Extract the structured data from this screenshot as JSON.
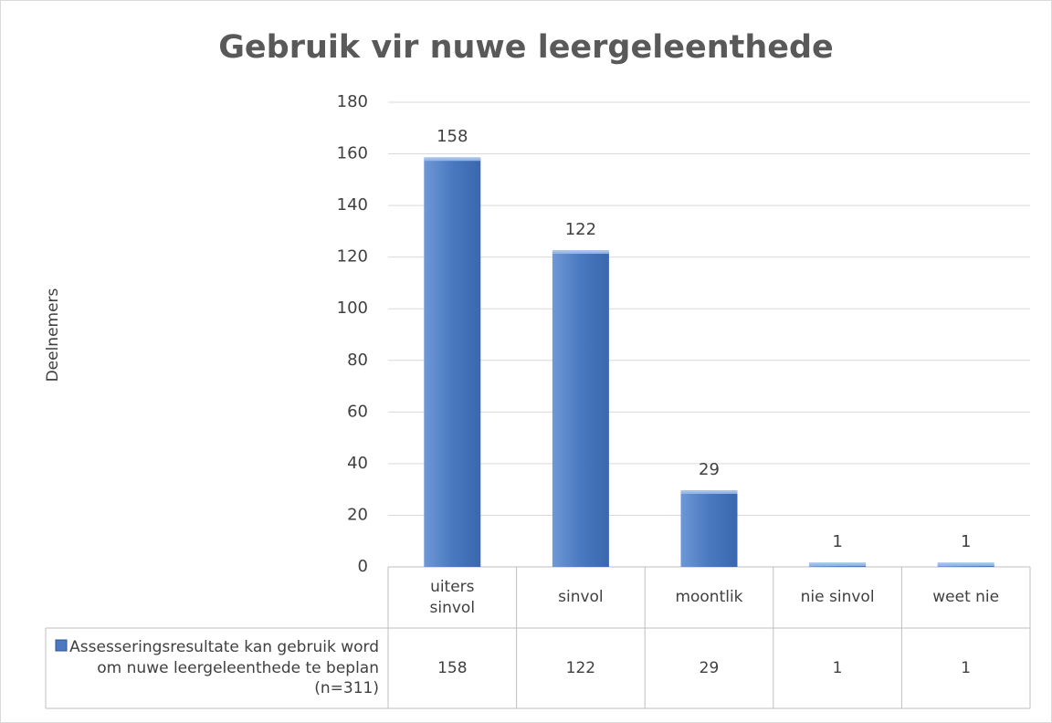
{
  "chart_data": {
    "type": "bar",
    "title": "Gebruik vir nuwe leergeleenthede",
    "y_label": "Deelnemers",
    "categories": [
      "uiters sinvol",
      "sinvol",
      "moontlik",
      "nie sinvol",
      "weet nie"
    ],
    "series": [
      {
        "name": "Assesseringsresultate kan gebruik word om nuwe leergeleenthede te beplan (n=311)",
        "color": "#4a79c0",
        "values": [
          158,
          122,
          29,
          1,
          1
        ]
      }
    ],
    "ylim": [
      0,
      180
    ],
    "yticks": [
      0,
      20,
      40,
      60,
      80,
      100,
      120,
      140,
      160,
      180
    ],
    "grid": true,
    "data_table": true
  }
}
